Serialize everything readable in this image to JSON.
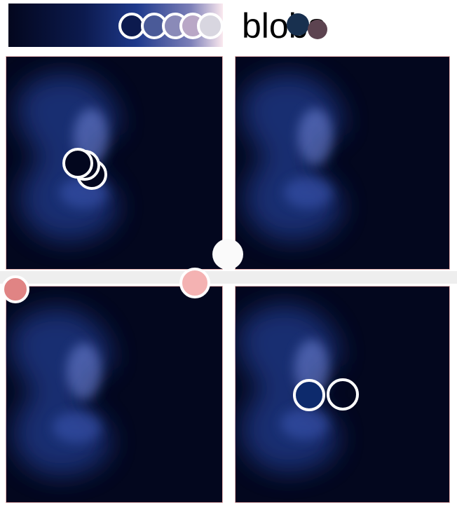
{
  "title": "blobs"
}
